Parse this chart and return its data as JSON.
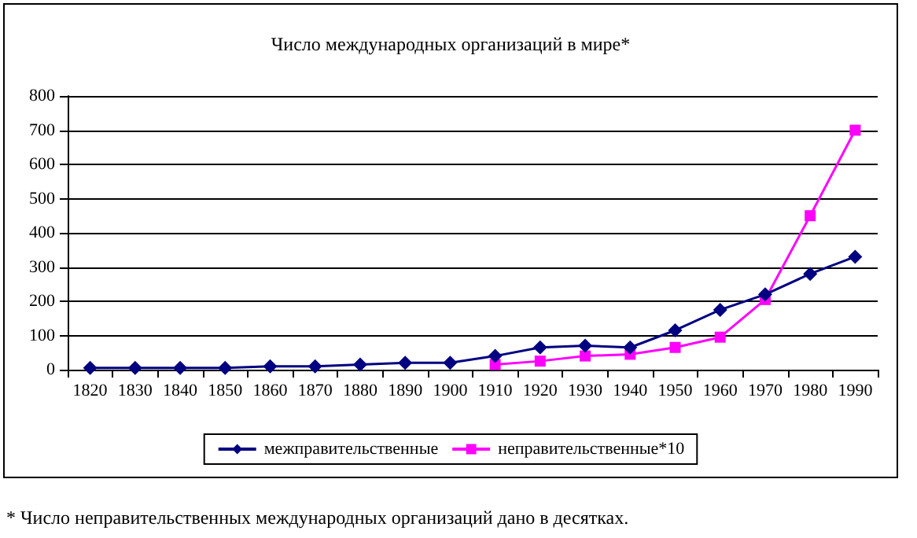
{
  "chart_data": {
    "type": "line",
    "title": "Число международных организаций в мире*",
    "categories": [
      "1820",
      "1830",
      "1840",
      "1850",
      "1860",
      "1870",
      "1880",
      "1890",
      "1900",
      "1910",
      "1920",
      "1930",
      "1940",
      "1950",
      "1960",
      "1970",
      "1980",
      "1990"
    ],
    "series": [
      {
        "name": "межправительственные",
        "color": "#000080",
        "marker": "diamond",
        "values": [
          5,
          5,
          5,
          5,
          10,
          10,
          15,
          20,
          20,
          40,
          65,
          70,
          65,
          115,
          175,
          220,
          280,
          330
        ]
      },
      {
        "name": "неправительственные*10",
        "color": "#ff00ff",
        "marker": "square",
        "values": [
          null,
          null,
          null,
          null,
          null,
          null,
          null,
          null,
          null,
          15,
          25,
          40,
          45,
          65,
          95,
          205,
          450,
          700
        ]
      }
    ],
    "ylim": [
      0,
      800
    ],
    "yticks": [
      0,
      100,
      200,
      300,
      400,
      500,
      600,
      700,
      800
    ],
    "grid": "y",
    "legend": "bottom",
    "annotations": [
      "* Число неправительственных международных организаций дано в десятках."
    ]
  }
}
